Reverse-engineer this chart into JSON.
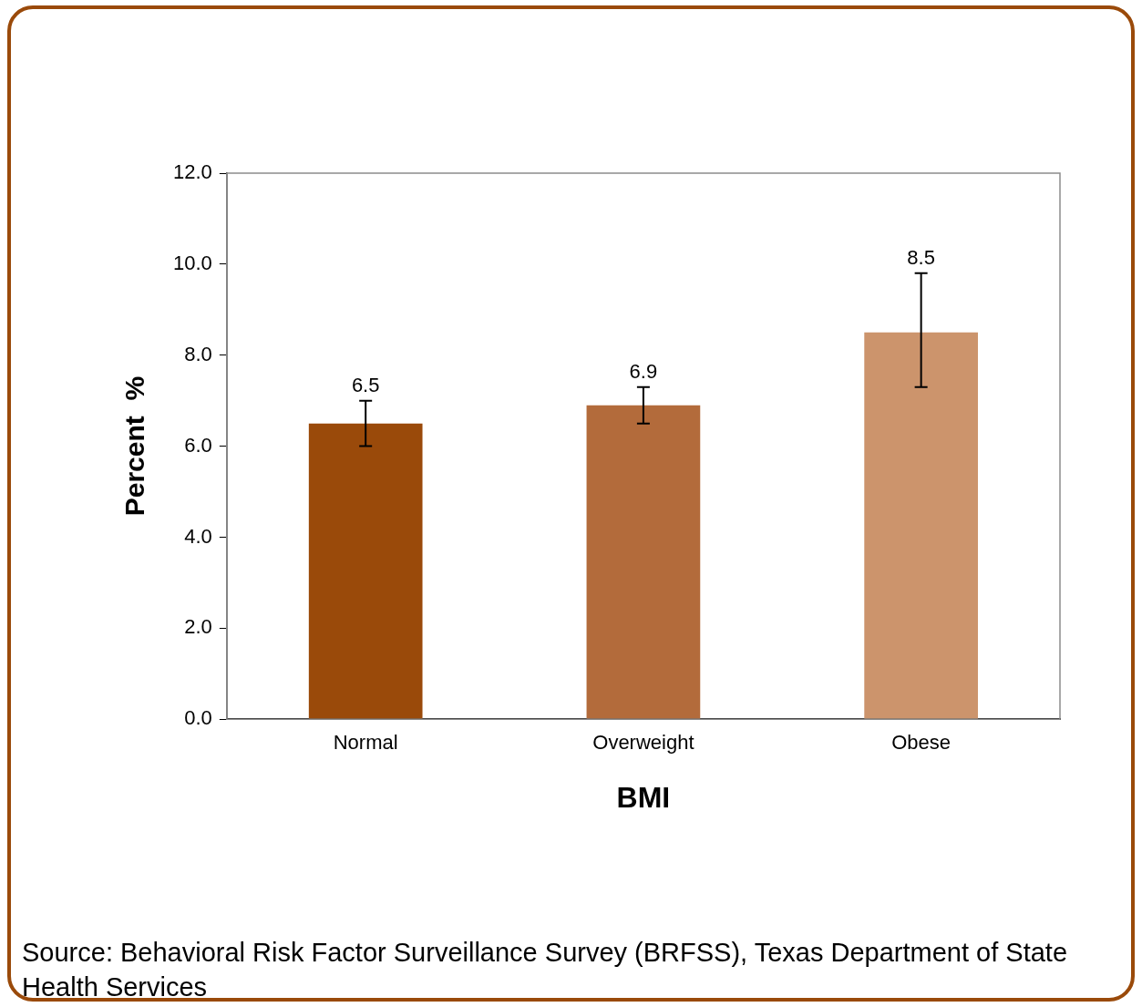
{
  "chart_data": {
    "type": "bar",
    "xlabel": "BMI",
    "ylabel": "Percent  %",
    "categories": [
      "Normal",
      "Overweight",
      "Obese"
    ],
    "values": [
      6.5,
      6.9,
      8.5
    ],
    "colors": [
      "#9a4a0a",
      "#b36b3b",
      "#cc946c"
    ],
    "errors": [
      [
        6.0,
        7.0
      ],
      [
        6.5,
        7.3
      ],
      [
        7.3,
        9.8
      ]
    ],
    "data_labels": true,
    "ylim": [
      0,
      12
    ],
    "yticks": [
      {
        "value": 0,
        "label": "0.0"
      },
      {
        "value": 2,
        "label": "2.0"
      },
      {
        "value": 4,
        "label": "4.0"
      },
      {
        "value": 6,
        "label": "6.0"
      },
      {
        "value": 8,
        "label": "8.0"
      },
      {
        "value": 10,
        "label": "10.0"
      },
      {
        "value": 12,
        "label": "12.0"
      }
    ],
    "grid": false,
    "legend": false,
    "annotations": [
      "Source: Behavioral Risk Factor Surveillance Survey (BRFSS), Texas Department of State Health Services"
    ]
  }
}
